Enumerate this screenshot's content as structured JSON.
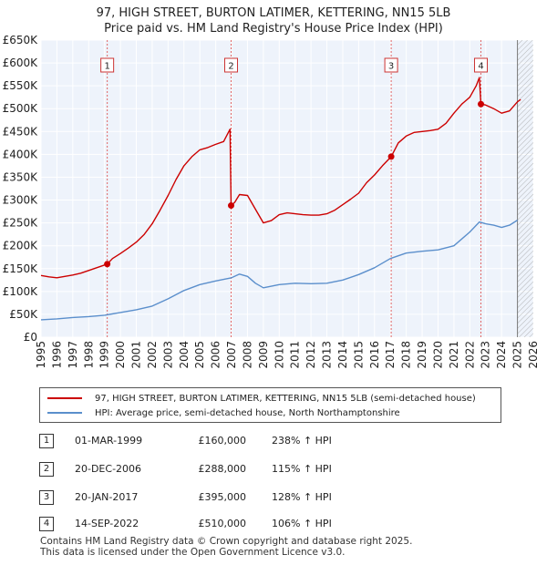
{
  "title_line1": "97, HIGH STREET, BURTON LATIMER, KETTERING, NN15 5LB",
  "title_line2": "Price paid vs. HM Land Registry's House Price Index (HPI)",
  "chart_data": {
    "type": "line",
    "title": "97, HIGH STREET, BURTON LATIMER, KETTERING, NN15 5LB - Price paid vs. HM Land Registry's House Price Index (HPI)",
    "xlim": [
      1995,
      2026
    ],
    "ylim": [
      0,
      650000
    ],
    "y_ticks": [
      0,
      50000,
      100000,
      150000,
      200000,
      250000,
      300000,
      350000,
      400000,
      450000,
      500000,
      550000,
      600000,
      650000
    ],
    "y_tick_labels": [
      "£0",
      "£50K",
      "£100K",
      "£150K",
      "£200K",
      "£250K",
      "£300K",
      "£350K",
      "£400K",
      "£450K",
      "£500K",
      "£550K",
      "£600K",
      "£650K"
    ],
    "x_ticks": [
      1995,
      1996,
      1997,
      1998,
      1999,
      2000,
      2001,
      2002,
      2003,
      2004,
      2005,
      2006,
      2007,
      2008,
      2009,
      2010,
      2011,
      2012,
      2013,
      2014,
      2015,
      2016,
      2017,
      2018,
      2019,
      2020,
      2021,
      2022,
      2023,
      2024,
      2025,
      2026
    ],
    "x_tick_labels": [
      "1995",
      "1996",
      "1997",
      "1998",
      "1999",
      "2000",
      "2001",
      "2002",
      "2003",
      "2004",
      "2005",
      "2006",
      "2007",
      "2008",
      "2009",
      "2010",
      "2011",
      "2012",
      "2013",
      "2014",
      "2015",
      "2016",
      "2017",
      "2018",
      "2019",
      "2020",
      "2021",
      "2022",
      "2023",
      "2024",
      "2025",
      "2026"
    ],
    "grid": true,
    "hatched_region_start": 2025.0,
    "series": [
      {
        "name": "97, HIGH STREET, BURTON LATIMER, KETTERING, NN15 5LB (semi-detached house)",
        "color": "#cc0000",
        "x": [
          1995.0,
          1995.5,
          1996.0,
          1996.5,
          1997.0,
          1997.5,
          1998.0,
          1998.5,
          1999.17,
          1999.5,
          2000.0,
          2000.5,
          2001.0,
          2001.5,
          2002.0,
          2002.5,
          2003.0,
          2003.5,
          2004.0,
          2004.5,
          2005.0,
          2005.5,
          2006.0,
          2006.5,
          2006.9,
          2006.97,
          2007.2,
          2007.5,
          2008.0,
          2008.5,
          2009.0,
          2009.5,
          2010.0,
          2010.5,
          2011.0,
          2011.5,
          2012.0,
          2012.5,
          2013.0,
          2013.5,
          2014.0,
          2014.5,
          2015.0,
          2015.5,
          2016.0,
          2016.5,
          2017.05,
          2017.5,
          2018.0,
          2018.5,
          2019.0,
          2019.5,
          2020.0,
          2020.5,
          2021.0,
          2021.5,
          2022.0,
          2022.4,
          2022.6,
          2022.7,
          2023.0,
          2023.5,
          2024.0,
          2024.5,
          2025.0,
          2025.2
        ],
        "values": [
          135000,
          132000,
          130000,
          133000,
          136000,
          140000,
          146000,
          152000,
          160000,
          172000,
          183000,
          195000,
          208000,
          225000,
          248000,
          278000,
          310000,
          345000,
          375000,
          395000,
          410000,
          415000,
          422000,
          428000,
          455000,
          288000,
          295000,
          312000,
          310000,
          280000,
          250000,
          255000,
          268000,
          272000,
          270000,
          268000,
          267000,
          267000,
          270000,
          278000,
          290000,
          302000,
          315000,
          338000,
          355000,
          375000,
          395000,
          425000,
          440000,
          448000,
          450000,
          452000,
          455000,
          468000,
          490000,
          510000,
          525000,
          550000,
          568000,
          510000,
          508000,
          500000,
          490000,
          495000,
          515000,
          520000
        ]
      },
      {
        "name": "HPI: Average price, semi-detached house, North Northamptonshire",
        "color": "#5b8fcc",
        "x": [
          1995.0,
          1996.0,
          1997.0,
          1998.0,
          1999.0,
          2000.0,
          2001.0,
          2002.0,
          2003.0,
          2004.0,
          2005.0,
          2006.0,
          2007.0,
          2007.5,
          2008.0,
          2008.5,
          2009.0,
          2010.0,
          2011.0,
          2012.0,
          2013.0,
          2014.0,
          2015.0,
          2016.0,
          2017.0,
          2018.0,
          2019.0,
          2020.0,
          2021.0,
          2022.0,
          2022.6,
          2023.0,
          2023.5,
          2024.0,
          2024.5,
          2025.0
        ],
        "values": [
          38000,
          40000,
          43000,
          45000,
          48000,
          54000,
          60000,
          68000,
          84000,
          102000,
          115000,
          123000,
          130000,
          138000,
          133000,
          118000,
          108000,
          115000,
          118000,
          117000,
          118000,
          125000,
          137000,
          152000,
          172000,
          184000,
          188000,
          191000,
          200000,
          230000,
          252000,
          248000,
          245000,
          240000,
          245000,
          256000
        ]
      }
    ],
    "sales": [
      {
        "num": "1",
        "x": 1999.17,
        "value": 160000
      },
      {
        "num": "2",
        "x": 2006.97,
        "value": 288000
      },
      {
        "num": "3",
        "x": 2017.05,
        "value": 395000
      },
      {
        "num": "4",
        "x": 2022.7,
        "value": 510000
      }
    ]
  },
  "legend": {
    "property": "97, HIGH STREET, BURTON LATIMER, KETTERING, NN15 5LB (semi-detached house)",
    "hpi": "HPI: Average price, semi-detached house, North Northamptonshire"
  },
  "sales_table": [
    {
      "num": "1",
      "date": "01-MAR-1999",
      "price": "£160,000",
      "hpi": "238% ↑ HPI"
    },
    {
      "num": "2",
      "date": "20-DEC-2006",
      "price": "£288,000",
      "hpi": "115% ↑ HPI"
    },
    {
      "num": "3",
      "date": "20-JAN-2017",
      "price": "£395,000",
      "hpi": "128% ↑ HPI"
    },
    {
      "num": "4",
      "date": "14-SEP-2022",
      "price": "£510,000",
      "hpi": "106% ↑ HPI"
    }
  ],
  "footer": {
    "line1": "Contains HM Land Registry data © Crown copyright and database right 2025.",
    "line2": "This data is licensed under the Open Government Licence v3.0."
  }
}
